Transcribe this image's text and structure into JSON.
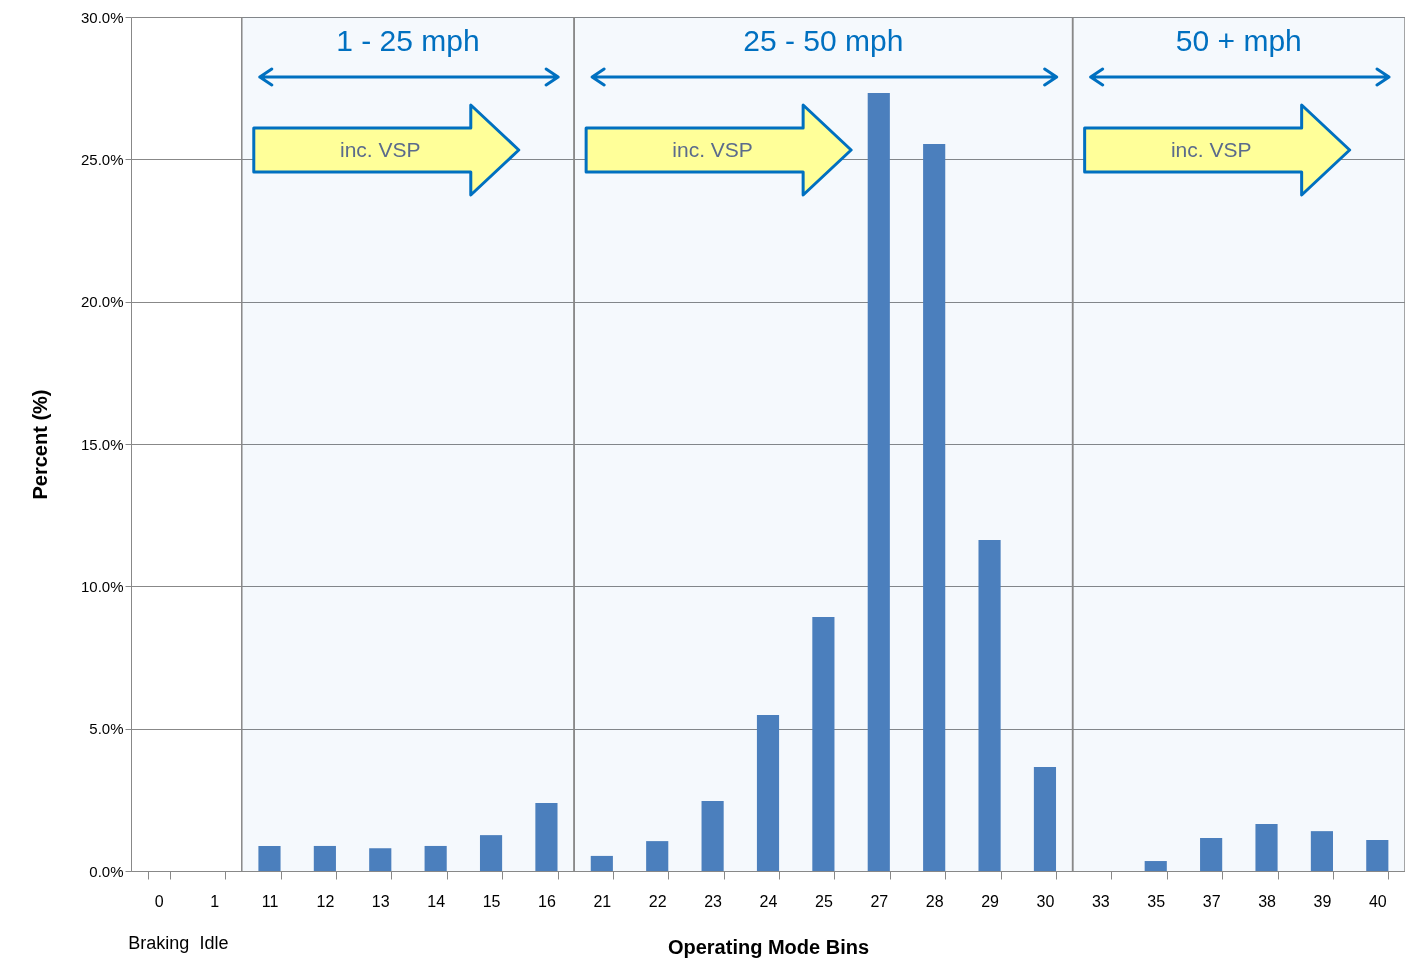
{
  "chart_data": {
    "type": "bar",
    "xlabel": "Operating Mode Bins",
    "ylabel": "Percent (%)",
    "categories": [
      "0",
      "1",
      "11",
      "12",
      "13",
      "14",
      "15",
      "16",
      "21",
      "22",
      "23",
      "24",
      "25",
      "27",
      "28",
      "29",
      "30",
      "33",
      "35",
      "37",
      "38",
      "39",
      "40"
    ],
    "values": [
      0,
      0,
      0.88,
      0.88,
      0.8,
      0.88,
      1.26,
      2.39,
      0.53,
      1.05,
      2.46,
      5.48,
      8.92,
      27.33,
      25.54,
      11.63,
      3.65,
      0,
      0.35,
      1.16,
      1.65,
      1.4,
      1.09
    ],
    "color": "#4f81bd",
    "ylim": [
      0,
      30
    ],
    "yticks": [
      {
        "value": 0,
        "label": "0.0%"
      },
      {
        "value": 5,
        "label": "5.0%"
      },
      {
        "value": 10,
        "label": "10.0%"
      },
      {
        "value": 15,
        "label": "15.0%"
      },
      {
        "value": 20,
        "label": "20.0%"
      },
      {
        "value": 25,
        "label": "25.0%"
      },
      {
        "value": 30,
        "label": "30.0%"
      }
    ],
    "grid": "y",
    "bands": [
      {
        "axis": "x",
        "from": "11",
        "to": "16",
        "label": "1 - 25 mph",
        "color": "#0070c0"
      },
      {
        "axis": "x",
        "from": "21",
        "to": "30",
        "label": "25 - 50 mph",
        "color": "#0070c0"
      },
      {
        "axis": "x",
        "from": "33",
        "to": "40",
        "label": "50 + mph",
        "color": "#0070c0"
      }
    ],
    "annotations": [
      "inc. VSP",
      "inc. VSP",
      "inc. VSP",
      "Braking",
      "Idle"
    ]
  }
}
